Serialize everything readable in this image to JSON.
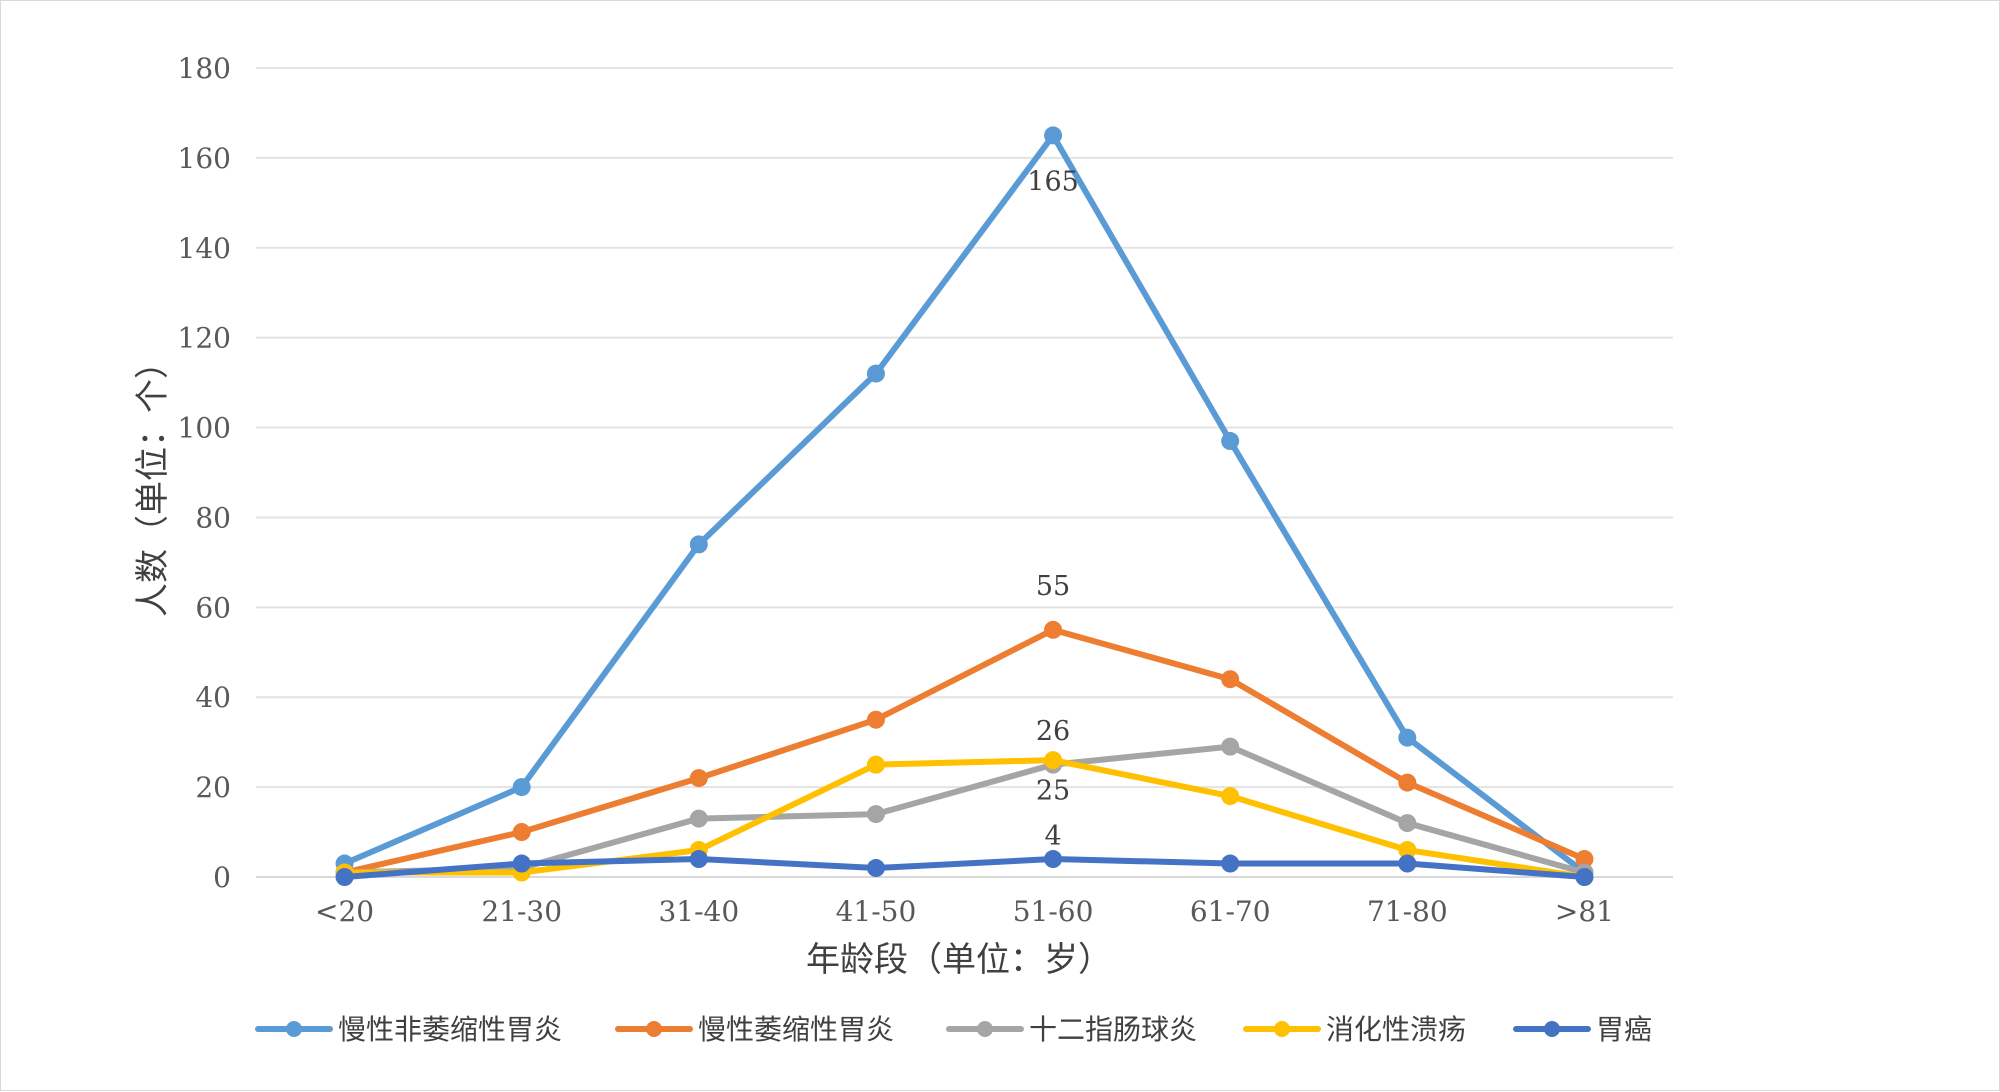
{
  "chart_data": {
    "type": "line",
    "title": "",
    "xlabel": "年龄段（单位：岁）",
    "ylabel": "人数（单位：个）",
    "categories": [
      "<20",
      "21-30",
      "31-40",
      "41-50",
      "51-60",
      "61-70",
      "71-80",
      ">81"
    ],
    "ylim": [
      0,
      180
    ],
    "yticks": [
      0,
      20,
      40,
      60,
      80,
      100,
      120,
      140,
      160,
      180
    ],
    "grid": true,
    "legend_position": "bottom",
    "series": [
      {
        "name": "慢性非萎缩性胃炎",
        "color": "#5b9bd5",
        "values": [
          3,
          20,
          74,
          112,
          165,
          97,
          31,
          1
        ],
        "labels": {
          "4": "165"
        }
      },
      {
        "name": "慢性萎缩性胃炎",
        "color": "#ed7d31",
        "values": [
          1,
          10,
          22,
          35,
          55,
          44,
          21,
          4
        ],
        "labels": {
          "4": "55"
        }
      },
      {
        "name": "十二指肠球炎",
        "color": "#a5a5a5",
        "values": [
          1,
          2,
          13,
          14,
          25,
          29,
          12,
          1
        ],
        "labels": {
          "4": "25"
        }
      },
      {
        "name": "消化性溃疡",
        "color": "#ffc000",
        "values": [
          1,
          1,
          6,
          25,
          26,
          18,
          6,
          0
        ],
        "labels": {
          "4": "26"
        }
      },
      {
        "name": "胃癌",
        "color": "#4472c4",
        "values": [
          0,
          3,
          4,
          2,
          4,
          3,
          3,
          0
        ],
        "labels": {
          "4": "4"
        }
      }
    ]
  }
}
